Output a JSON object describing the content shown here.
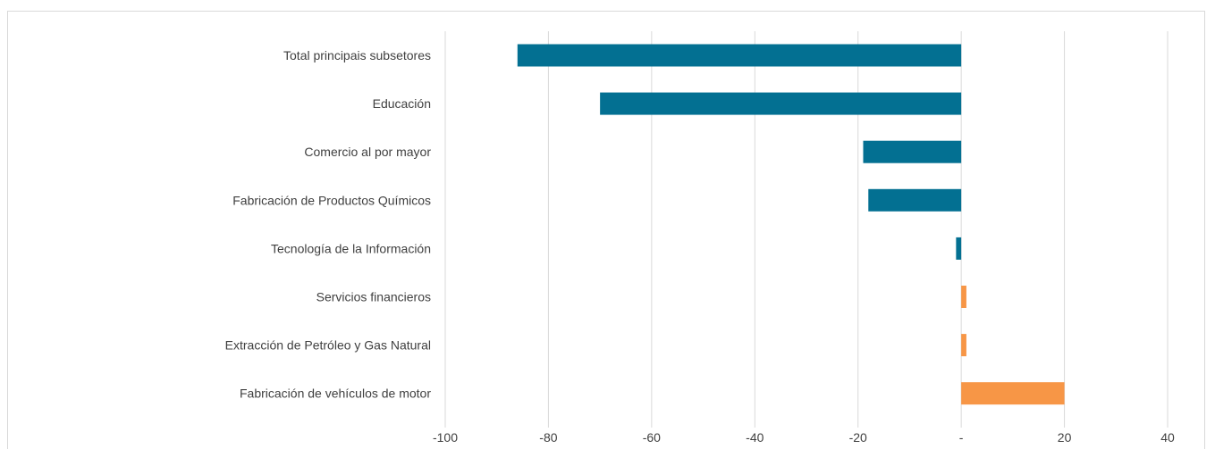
{
  "chart_data": {
    "type": "bar",
    "orientation": "horizontal",
    "title": "",
    "xlabel": "",
    "ylabel": "",
    "xlim": [
      -100,
      40
    ],
    "grid": true,
    "legend": "none",
    "categories": [
      "Total principais subsetores",
      "Educación",
      "Comercio al por mayor",
      "Fabricación de Productos Químicos",
      "Tecnología de la Información",
      "Servicios financieros",
      "Extracción de Petróleo y Gas Natural",
      "Fabricación de vehículos de motor"
    ],
    "values": [
      -86,
      -70,
      -19,
      -18,
      -1,
      1,
      1,
      20
    ],
    "colors": {
      "negative": "#037092",
      "positive": "#f79646"
    },
    "ticks": [
      {
        "value": -100,
        "label": "-100"
      },
      {
        "value": -80,
        "label": "-80"
      },
      {
        "value": -60,
        "label": "-60"
      },
      {
        "value": -40,
        "label": "-40"
      },
      {
        "value": -20,
        "label": "-20"
      },
      {
        "value": 0,
        "label": "-"
      },
      {
        "value": 20,
        "label": "20"
      },
      {
        "value": 40,
        "label": "40"
      }
    ]
  }
}
